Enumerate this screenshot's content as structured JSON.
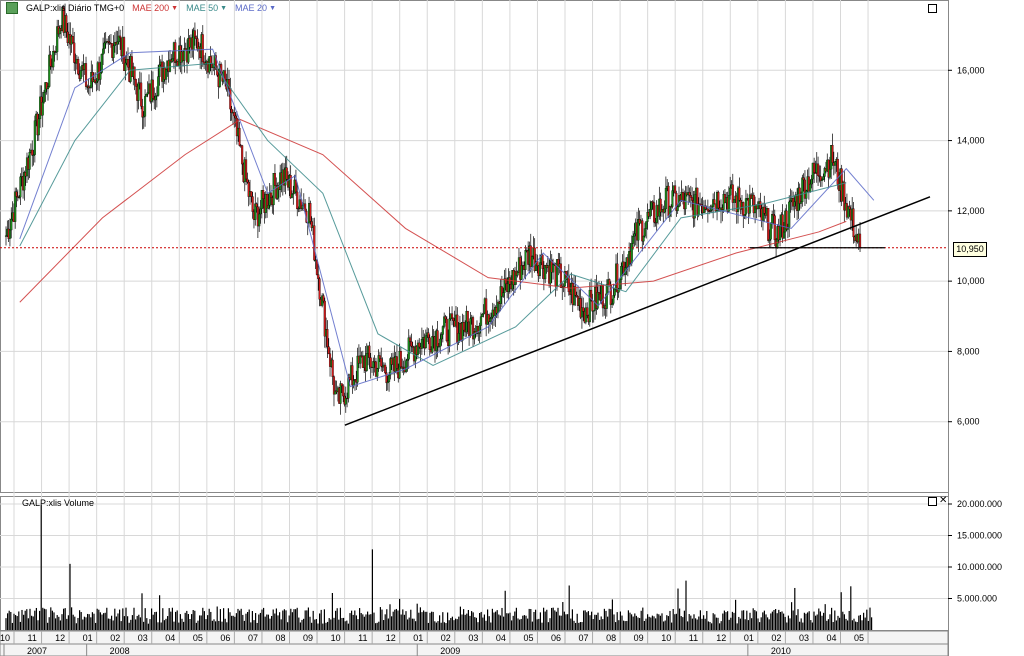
{
  "header": {
    "title": "GALP:xlis Diário TMG+0",
    "ma200": {
      "label": "MAE 200",
      "color": "#cc3333"
    },
    "ma50": {
      "label": "MAE 50",
      "color": "#3a8a8a"
    },
    "ma20": {
      "label": "MAE 20",
      "color": "#5a6ac8"
    }
  },
  "volume_panel": {
    "title": "GALP:xlis Volume"
  },
  "last_value": "10,950",
  "price_axis": {
    "ticks": [
      "6,000",
      "8,000",
      "10,000",
      "12,000",
      "14,000",
      "16,000"
    ]
  },
  "volume_axis": {
    "ticks": [
      "5.000.000",
      "10.000.000",
      "15.000.000",
      "20.000.000"
    ]
  },
  "time_axis": {
    "months": [
      "10",
      "11",
      "12",
      "01",
      "02",
      "03",
      "04",
      "05",
      "06",
      "07",
      "08",
      "09",
      "10",
      "11",
      "12",
      "01",
      "02",
      "03",
      "04",
      "05",
      "06",
      "07",
      "08",
      "09",
      "10",
      "11",
      "12",
      "01",
      "02",
      "03",
      "04",
      "05"
    ],
    "years": [
      "2007",
      "2008",
      "2009",
      "2010"
    ]
  },
  "chart_data": {
    "type": "candlestick",
    "title": "GALP:xlis Diário TMG+0",
    "x_range": [
      "2007-10",
      "2010-05"
    ],
    "ylim": [
      4.0,
      18.0
    ],
    "price_series": {
      "name": "GALP:xlis",
      "monthly_close_approx": [
        {
          "x": "2007-10",
          "y": 11.3
        },
        {
          "x": "2007-11",
          "y": 14.0
        },
        {
          "x": "2007-12",
          "y": 17.5
        },
        {
          "x": "2008-01",
          "y": 15.5
        },
        {
          "x": "2008-02",
          "y": 17.0
        },
        {
          "x": "2008-03",
          "y": 15.0
        },
        {
          "x": "2008-04",
          "y": 16.5
        },
        {
          "x": "2008-05",
          "y": 16.8
        },
        {
          "x": "2008-06",
          "y": 15.5
        },
        {
          "x": "2008-07",
          "y": 11.8
        },
        {
          "x": "2008-08",
          "y": 13.0
        },
        {
          "x": "2008-09",
          "y": 12.0
        },
        {
          "x": "2008-10",
          "y": 6.5
        },
        {
          "x": "2008-11",
          "y": 7.8
        },
        {
          "x": "2008-12",
          "y": 7.4
        },
        {
          "x": "2009-01",
          "y": 8.3
        },
        {
          "x": "2009-02",
          "y": 8.6
        },
        {
          "x": "2009-03",
          "y": 8.8
        },
        {
          "x": "2009-04",
          "y": 9.6
        },
        {
          "x": "2009-05",
          "y": 10.8
        },
        {
          "x": "2009-06",
          "y": 10.2
        },
        {
          "x": "2009-07",
          "y": 9.2
        },
        {
          "x": "2009-08",
          "y": 9.8
        },
        {
          "x": "2009-09",
          "y": 11.5
        },
        {
          "x": "2009-10",
          "y": 12.3
        },
        {
          "x": "2009-11",
          "y": 12.2
        },
        {
          "x": "2009-12",
          "y": 12.4
        },
        {
          "x": "2010-01",
          "y": 12.2
        },
        {
          "x": "2010-02",
          "y": 11.3
        },
        {
          "x": "2010-03",
          "y": 12.8
        },
        {
          "x": "2010-04",
          "y": 13.5
        },
        {
          "x": "2010-05",
          "y": 10.95
        }
      ]
    },
    "moving_averages": [
      {
        "name": "MAE 200",
        "points": [
          {
            "x": "2007-10",
            "y": 9.4
          },
          {
            "x": "2008-01",
            "y": 11.8
          },
          {
            "x": "2008-04",
            "y": 13.6
          },
          {
            "x": "2008-06",
            "y": 14.6
          },
          {
            "x": "2008-09",
            "y": 13.6
          },
          {
            "x": "2008-12",
            "y": 11.5
          },
          {
            "x": "2009-03",
            "y": 10.1
          },
          {
            "x": "2009-06",
            "y": 9.8
          },
          {
            "x": "2009-09",
            "y": 10.0
          },
          {
            "x": "2009-12",
            "y": 10.8
          },
          {
            "x": "2010-03",
            "y": 11.4
          },
          {
            "x": "2010-04",
            "y": 11.7
          }
        ]
      },
      {
        "name": "MAE 50",
        "points": [
          {
            "x": "2007-10",
            "y": 11.0
          },
          {
            "x": "2007-12",
            "y": 14.0
          },
          {
            "x": "2008-02",
            "y": 16.0
          },
          {
            "x": "2008-05",
            "y": 16.2
          },
          {
            "x": "2008-07",
            "y": 14.0
          },
          {
            "x": "2008-09",
            "y": 12.5
          },
          {
            "x": "2008-11",
            "y": 8.5
          },
          {
            "x": "2009-01",
            "y": 7.6
          },
          {
            "x": "2009-04",
            "y": 8.7
          },
          {
            "x": "2009-06",
            "y": 10.2
          },
          {
            "x": "2009-08",
            "y": 9.7
          },
          {
            "x": "2009-10",
            "y": 11.8
          },
          {
            "x": "2010-01",
            "y": 12.2
          },
          {
            "x": "2010-04",
            "y": 12.8
          }
        ]
      },
      {
        "name": "MAE 20",
        "points": [
          {
            "x": "2007-10",
            "y": 11.2
          },
          {
            "x": "2007-12",
            "y": 15.5
          },
          {
            "x": "2008-02",
            "y": 16.5
          },
          {
            "x": "2008-05",
            "y": 16.6
          },
          {
            "x": "2008-07",
            "y": 12.5
          },
          {
            "x": "2008-08",
            "y": 13.0
          },
          {
            "x": "2008-10",
            "y": 7.0
          },
          {
            "x": "2008-12",
            "y": 7.5
          },
          {
            "x": "2009-03",
            "y": 8.7
          },
          {
            "x": "2009-05",
            "y": 10.8
          },
          {
            "x": "2009-07",
            "y": 9.3
          },
          {
            "x": "2009-10",
            "y": 12.3
          },
          {
            "x": "2010-02",
            "y": 11.5
          },
          {
            "x": "2010-04",
            "y": 13.2
          },
          {
            "x": "2010-05",
            "y": 12.3
          }
        ]
      }
    ],
    "support_line": {
      "y": 10.95
    },
    "trendline": [
      {
        "x": "2008-10",
        "y": 5.9
      },
      {
        "x": "2010-05",
        "y": 12.4
      }
    ],
    "volume": {
      "name": "GALP:xlis Volume",
      "ylim": [
        0,
        20000000
      ],
      "spikes": [
        {
          "x": "2007-11",
          "y": 19800000
        },
        {
          "x": "2007-12",
          "y": 10500000
        },
        {
          "x": "2008-11",
          "y": 12800000
        },
        {
          "x": "2010-04",
          "y": 6000000
        }
      ],
      "typical": 2000000
    }
  }
}
